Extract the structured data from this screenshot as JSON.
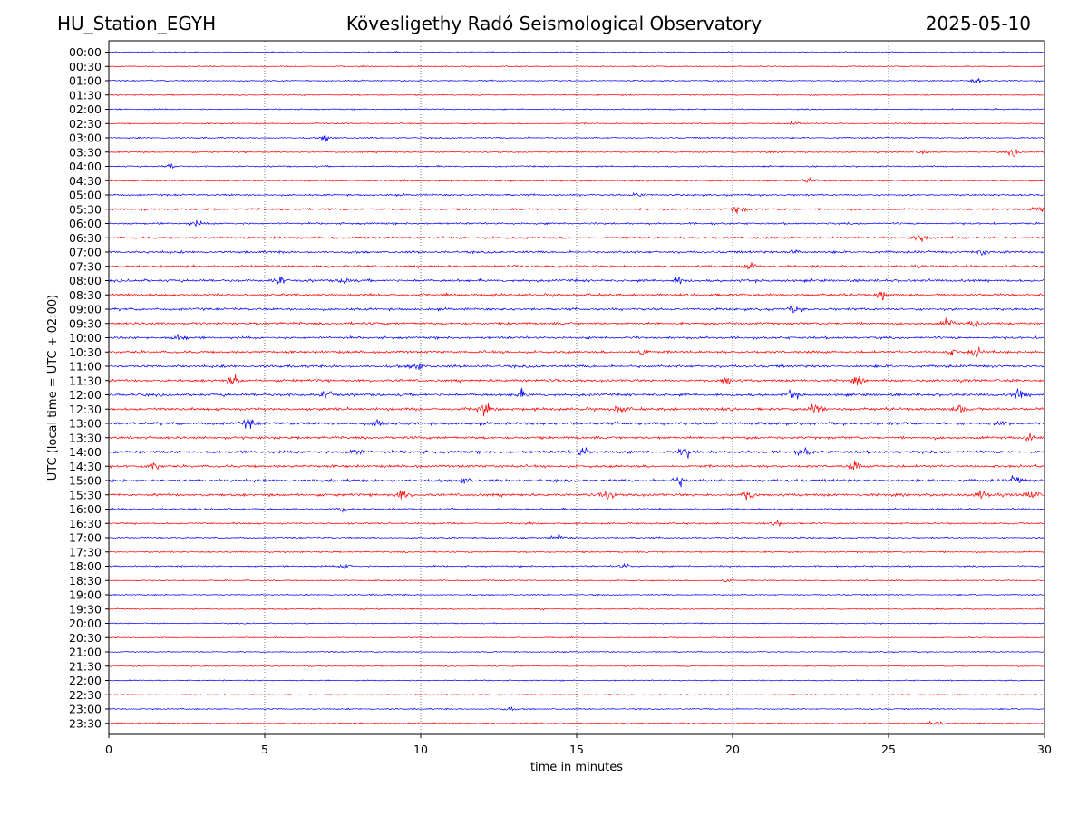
{
  "header": {
    "station": "HU_Station_EGYH",
    "title": "Kövesligethy Radó Seismological Observatory",
    "date": "2025-05-10"
  },
  "chart_data": {
    "type": "line",
    "subtype": "helicorder",
    "title": "Kövesligethy Radó Seismological Observatory",
    "xlabel": "time in minutes",
    "ylabel": "UTC (local time = UTC + 02:00)",
    "xlim": [
      0,
      30
    ],
    "xticks": [
      0,
      5,
      10,
      15,
      20,
      25,
      30
    ],
    "grid": "vertical dotted lines at x ticks",
    "colors": {
      "even_rows": "#0000ff",
      "odd_rows": "#ff0000",
      "frame": "#000000",
      "grid": "#555555"
    },
    "rows": [
      {
        "label": "00:00",
        "activity": 0.25,
        "bursts": []
      },
      {
        "label": "00:30",
        "activity": 0.25,
        "bursts": []
      },
      {
        "label": "01:00",
        "activity": 0.3,
        "bursts": [
          [
            27.8,
            0.8
          ]
        ]
      },
      {
        "label": "01:30",
        "activity": 0.25,
        "bursts": []
      },
      {
        "label": "02:00",
        "activity": 0.3,
        "bursts": []
      },
      {
        "label": "02:30",
        "activity": 0.3,
        "bursts": [
          [
            22,
            0.6
          ]
        ]
      },
      {
        "label": "03:00",
        "activity": 0.35,
        "bursts": [
          [
            7,
            1.2
          ]
        ]
      },
      {
        "label": "03:30",
        "activity": 0.35,
        "bursts": [
          [
            26,
            0.8
          ],
          [
            29,
            1.2
          ]
        ]
      },
      {
        "label": "04:00",
        "activity": 0.4,
        "bursts": [
          [
            2,
            0.8
          ]
        ]
      },
      {
        "label": "04:30",
        "activity": 0.4,
        "bursts": [
          [
            22.5,
            0.8
          ]
        ]
      },
      {
        "label": "05:00",
        "activity": 0.55,
        "bursts": [
          [
            17,
            0.8
          ]
        ]
      },
      {
        "label": "05:30",
        "activity": 0.6,
        "bursts": [
          [
            20.2,
            1.6
          ],
          [
            29.8,
            1.5
          ]
        ]
      },
      {
        "label": "06:00",
        "activity": 0.6,
        "bursts": [
          [
            2.8,
            0.8
          ]
        ]
      },
      {
        "label": "06:30",
        "activity": 0.7,
        "bursts": [
          [
            26,
            1.4
          ]
        ]
      },
      {
        "label": "07:00",
        "activity": 0.8,
        "bursts": [
          [
            22,
            1.2
          ],
          [
            28,
            1.2
          ]
        ]
      },
      {
        "label": "07:30",
        "activity": 0.8,
        "bursts": [
          [
            20.6,
            1.2
          ]
        ]
      },
      {
        "label": "08:00",
        "activity": 0.9,
        "bursts": [
          [
            5.5,
            1.3
          ],
          [
            7.6,
            1.3
          ],
          [
            18.3,
            1.5
          ]
        ]
      },
      {
        "label": "08:30",
        "activity": 0.9,
        "bursts": [
          [
            24.8,
            1.7
          ]
        ]
      },
      {
        "label": "09:00",
        "activity": 0.85,
        "bursts": [
          [
            22,
            1.2
          ]
        ]
      },
      {
        "label": "09:30",
        "activity": 0.85,
        "bursts": [
          [
            26.9,
            1.4
          ],
          [
            27.8,
            1.2
          ]
        ]
      },
      {
        "label": "10:00",
        "activity": 0.85,
        "bursts": [
          [
            2.3,
            1.2
          ]
        ]
      },
      {
        "label": "10:30",
        "activity": 0.85,
        "bursts": [
          [
            17.1,
            1.4
          ],
          [
            27,
            1.2
          ],
          [
            27.8,
            1.4
          ]
        ]
      },
      {
        "label": "11:00",
        "activity": 0.9,
        "bursts": [
          [
            9.9,
            2.0
          ]
        ]
      },
      {
        "label": "11:30",
        "activity": 0.9,
        "bursts": [
          [
            4,
            1.4
          ],
          [
            19.8,
            1.4
          ],
          [
            24,
            1.2
          ]
        ]
      },
      {
        "label": "12:00",
        "activity": 1.0,
        "bursts": [
          [
            7,
            1.6
          ],
          [
            13.2,
            1.5
          ],
          [
            21.9,
            1.4
          ],
          [
            29.2,
            1.6
          ]
        ]
      },
      {
        "label": "12:30",
        "activity": 1.0,
        "bursts": [
          [
            12,
            1.6
          ],
          [
            16.4,
            1.5
          ],
          [
            22.7,
            2.5
          ],
          [
            27.3,
            1.6
          ]
        ]
      },
      {
        "label": "13:00",
        "activity": 1.0,
        "bursts": [
          [
            4.5,
            1.6
          ],
          [
            8.7,
            1.6
          ],
          [
            28.7,
            1.2
          ]
        ]
      },
      {
        "label": "13:30",
        "activity": 0.9,
        "bursts": [
          [
            29.5,
            1.2
          ]
        ]
      },
      {
        "label": "14:00",
        "activity": 1.0,
        "bursts": [
          [
            7.9,
            1.6
          ],
          [
            15.2,
            1.6
          ],
          [
            18.5,
            1.8
          ],
          [
            22.3,
            1.4
          ]
        ]
      },
      {
        "label": "14:30",
        "activity": 0.9,
        "bursts": [
          [
            1.4,
            1.8
          ],
          [
            23.9,
            1.4
          ]
        ]
      },
      {
        "label": "15:00",
        "activity": 0.95,
        "bursts": [
          [
            11.4,
            1.4
          ],
          [
            18.3,
            1.6
          ],
          [
            29.1,
            1.4
          ]
        ]
      },
      {
        "label": "15:30",
        "activity": 0.95,
        "bursts": [
          [
            9.4,
            1.6
          ],
          [
            16,
            1.5
          ],
          [
            20.5,
            1.6
          ],
          [
            28,
            1.6
          ],
          [
            29.6,
            1.8
          ]
        ]
      },
      {
        "label": "16:00",
        "activity": 0.55,
        "bursts": [
          [
            7.5,
            1.0
          ]
        ]
      },
      {
        "label": "16:30",
        "activity": 0.5,
        "bursts": [
          [
            21.5,
            0.9
          ]
        ]
      },
      {
        "label": "17:00",
        "activity": 0.45,
        "bursts": [
          [
            14.4,
            1.2
          ]
        ]
      },
      {
        "label": "17:30",
        "activity": 0.4,
        "bursts": []
      },
      {
        "label": "18:00",
        "activity": 0.45,
        "bursts": [
          [
            7.6,
            0.9
          ],
          [
            16.5,
            0.9
          ]
        ]
      },
      {
        "label": "18:30",
        "activity": 0.3,
        "bursts": [
          [
            19.8,
            0.7
          ]
        ]
      },
      {
        "label": "19:00",
        "activity": 0.3,
        "bursts": []
      },
      {
        "label": "19:30",
        "activity": 0.3,
        "bursts": []
      },
      {
        "label": "20:00",
        "activity": 0.2,
        "bursts": []
      },
      {
        "label": "20:30",
        "activity": 0.2,
        "bursts": []
      },
      {
        "label": "21:00",
        "activity": 0.25,
        "bursts": []
      },
      {
        "label": "21:30",
        "activity": 0.2,
        "bursts": []
      },
      {
        "label": "22:00",
        "activity": 0.25,
        "bursts": []
      },
      {
        "label": "22:30",
        "activity": 0.25,
        "bursts": []
      },
      {
        "label": "23:00",
        "activity": 0.3,
        "bursts": [
          [
            12.8,
            0.7
          ]
        ]
      },
      {
        "label": "23:30",
        "activity": 0.35,
        "bursts": [
          [
            26.5,
            1.3
          ]
        ]
      }
    ]
  }
}
